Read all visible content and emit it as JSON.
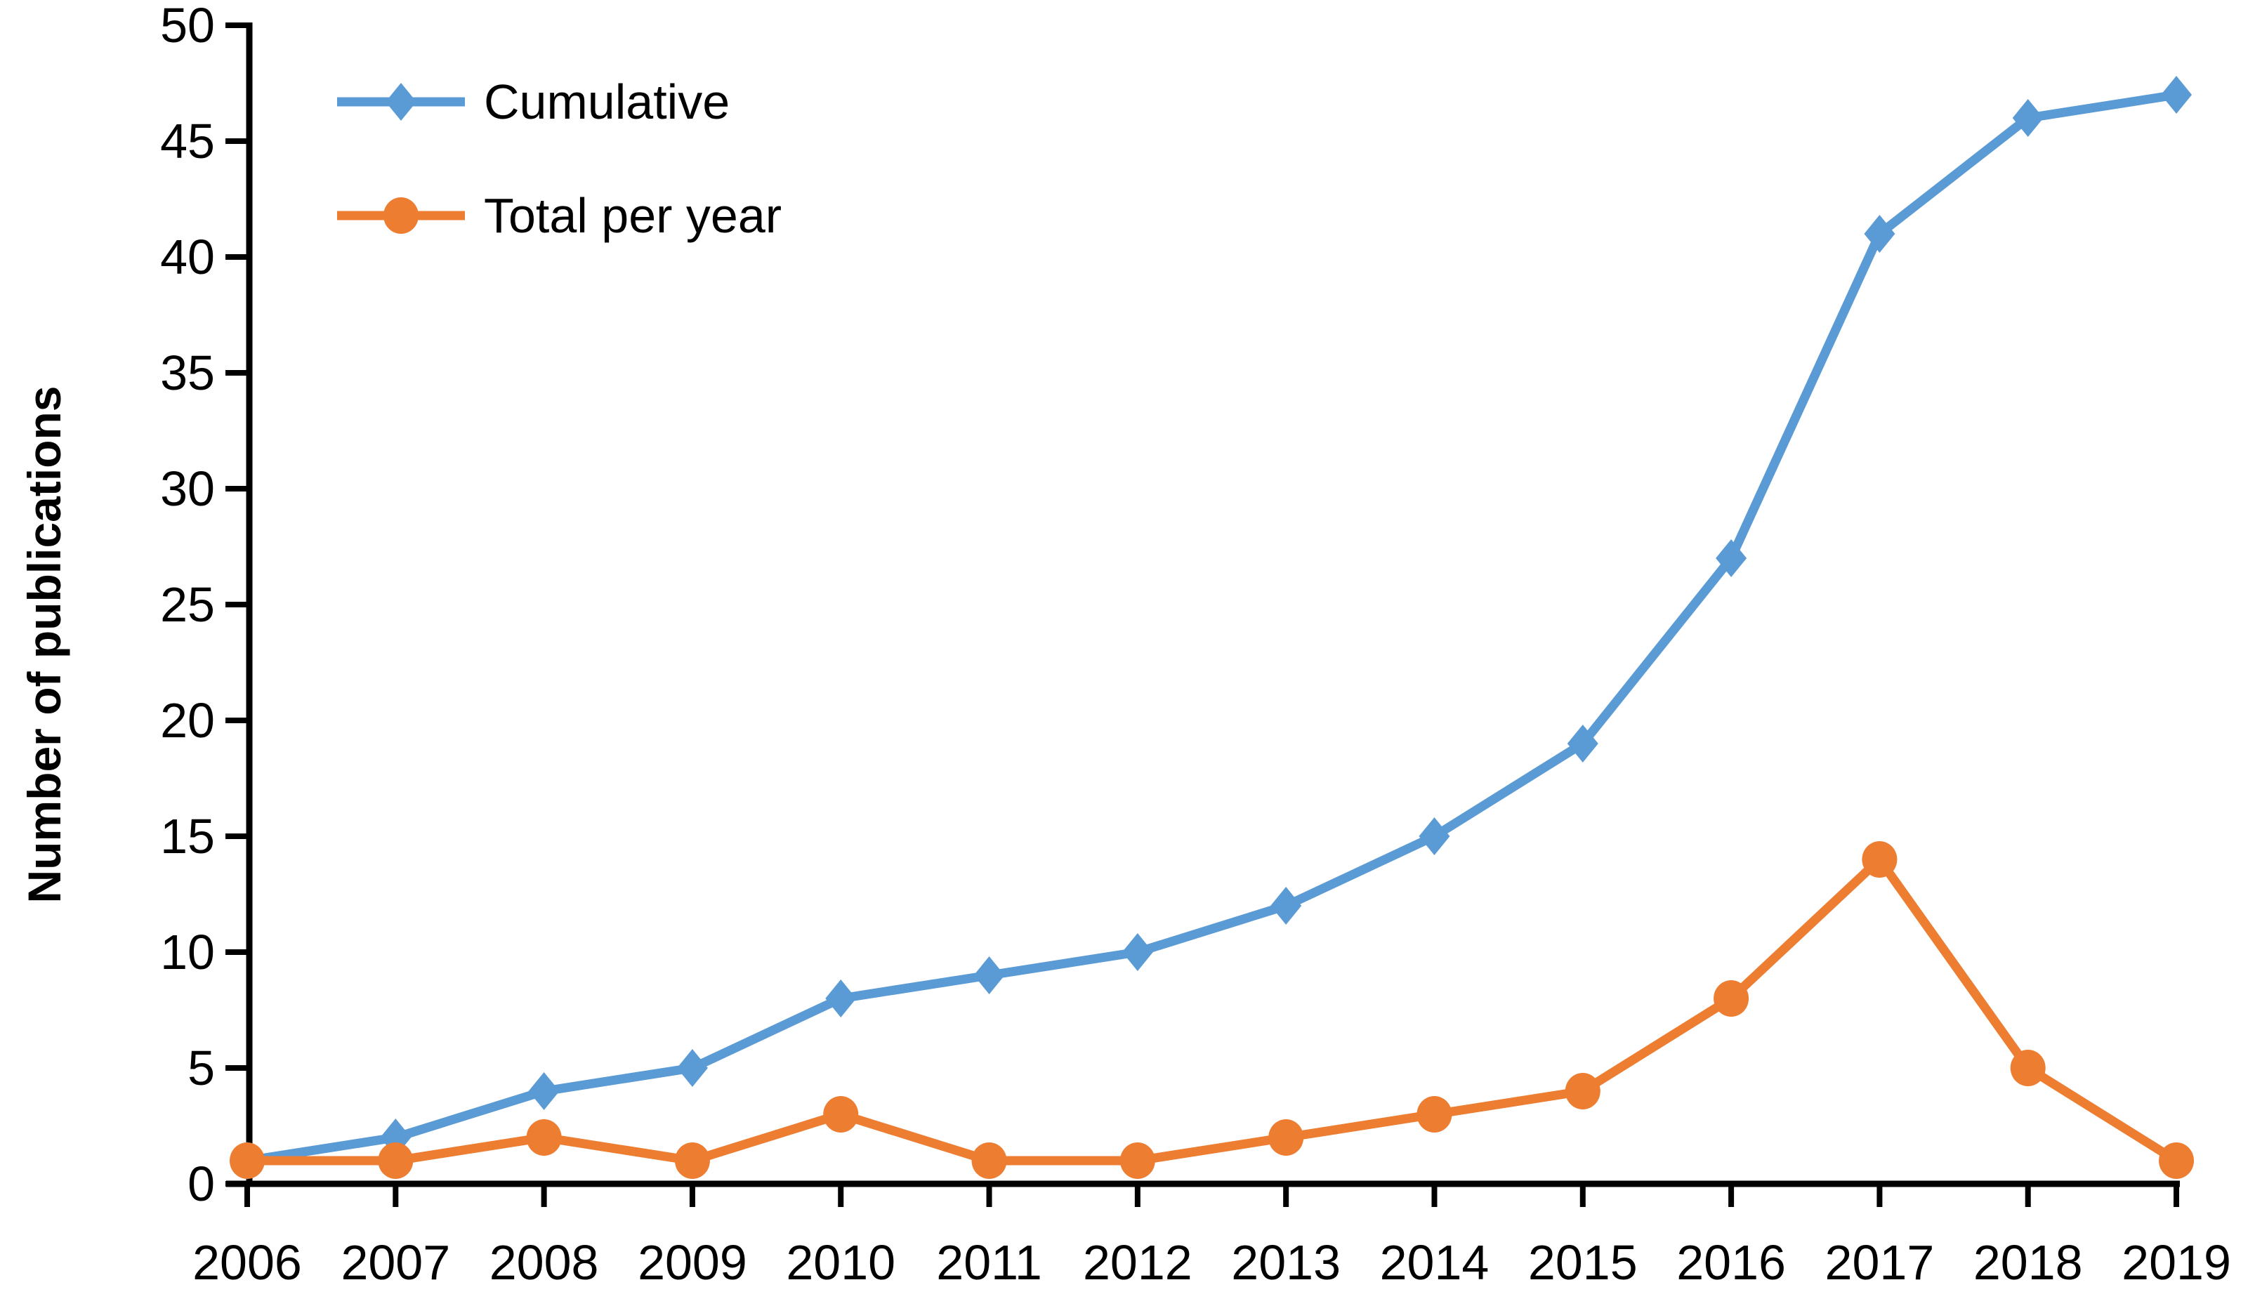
{
  "chart_data": {
    "type": "line",
    "title": "",
    "categories": [
      "2006",
      "2007",
      "2008",
      "2009",
      "2010",
      "2011",
      "2012",
      "2013",
      "2014",
      "2015",
      "2016",
      "2017",
      "2018",
      "2019"
    ],
    "series": [
      {
        "name": "Cumulative",
        "color": "#5B9BD5",
        "marker": "diamond",
        "values": [
          1,
          2,
          4,
          5,
          8,
          9,
          10,
          12,
          15,
          19,
          27,
          41,
          46,
          47
        ]
      },
      {
        "name": "Total per year",
        "color": "#ED7D31",
        "marker": "circle",
        "values": [
          1,
          1,
          2,
          1,
          3,
          1,
          1,
          2,
          3,
          4,
          8,
          14,
          5,
          1
        ]
      }
    ],
    "xlabel": "",
    "ylabel": "Number of publications",
    "ylim": [
      0,
      50
    ],
    "yticks": [
      0,
      5,
      10,
      15,
      20,
      25,
      30,
      35,
      40,
      45,
      50
    ],
    "grid": false,
    "legend_position": "upper-left-inside",
    "axis_color": "#000000",
    "text_color": "#000000",
    "background": "#FFFFFF"
  }
}
